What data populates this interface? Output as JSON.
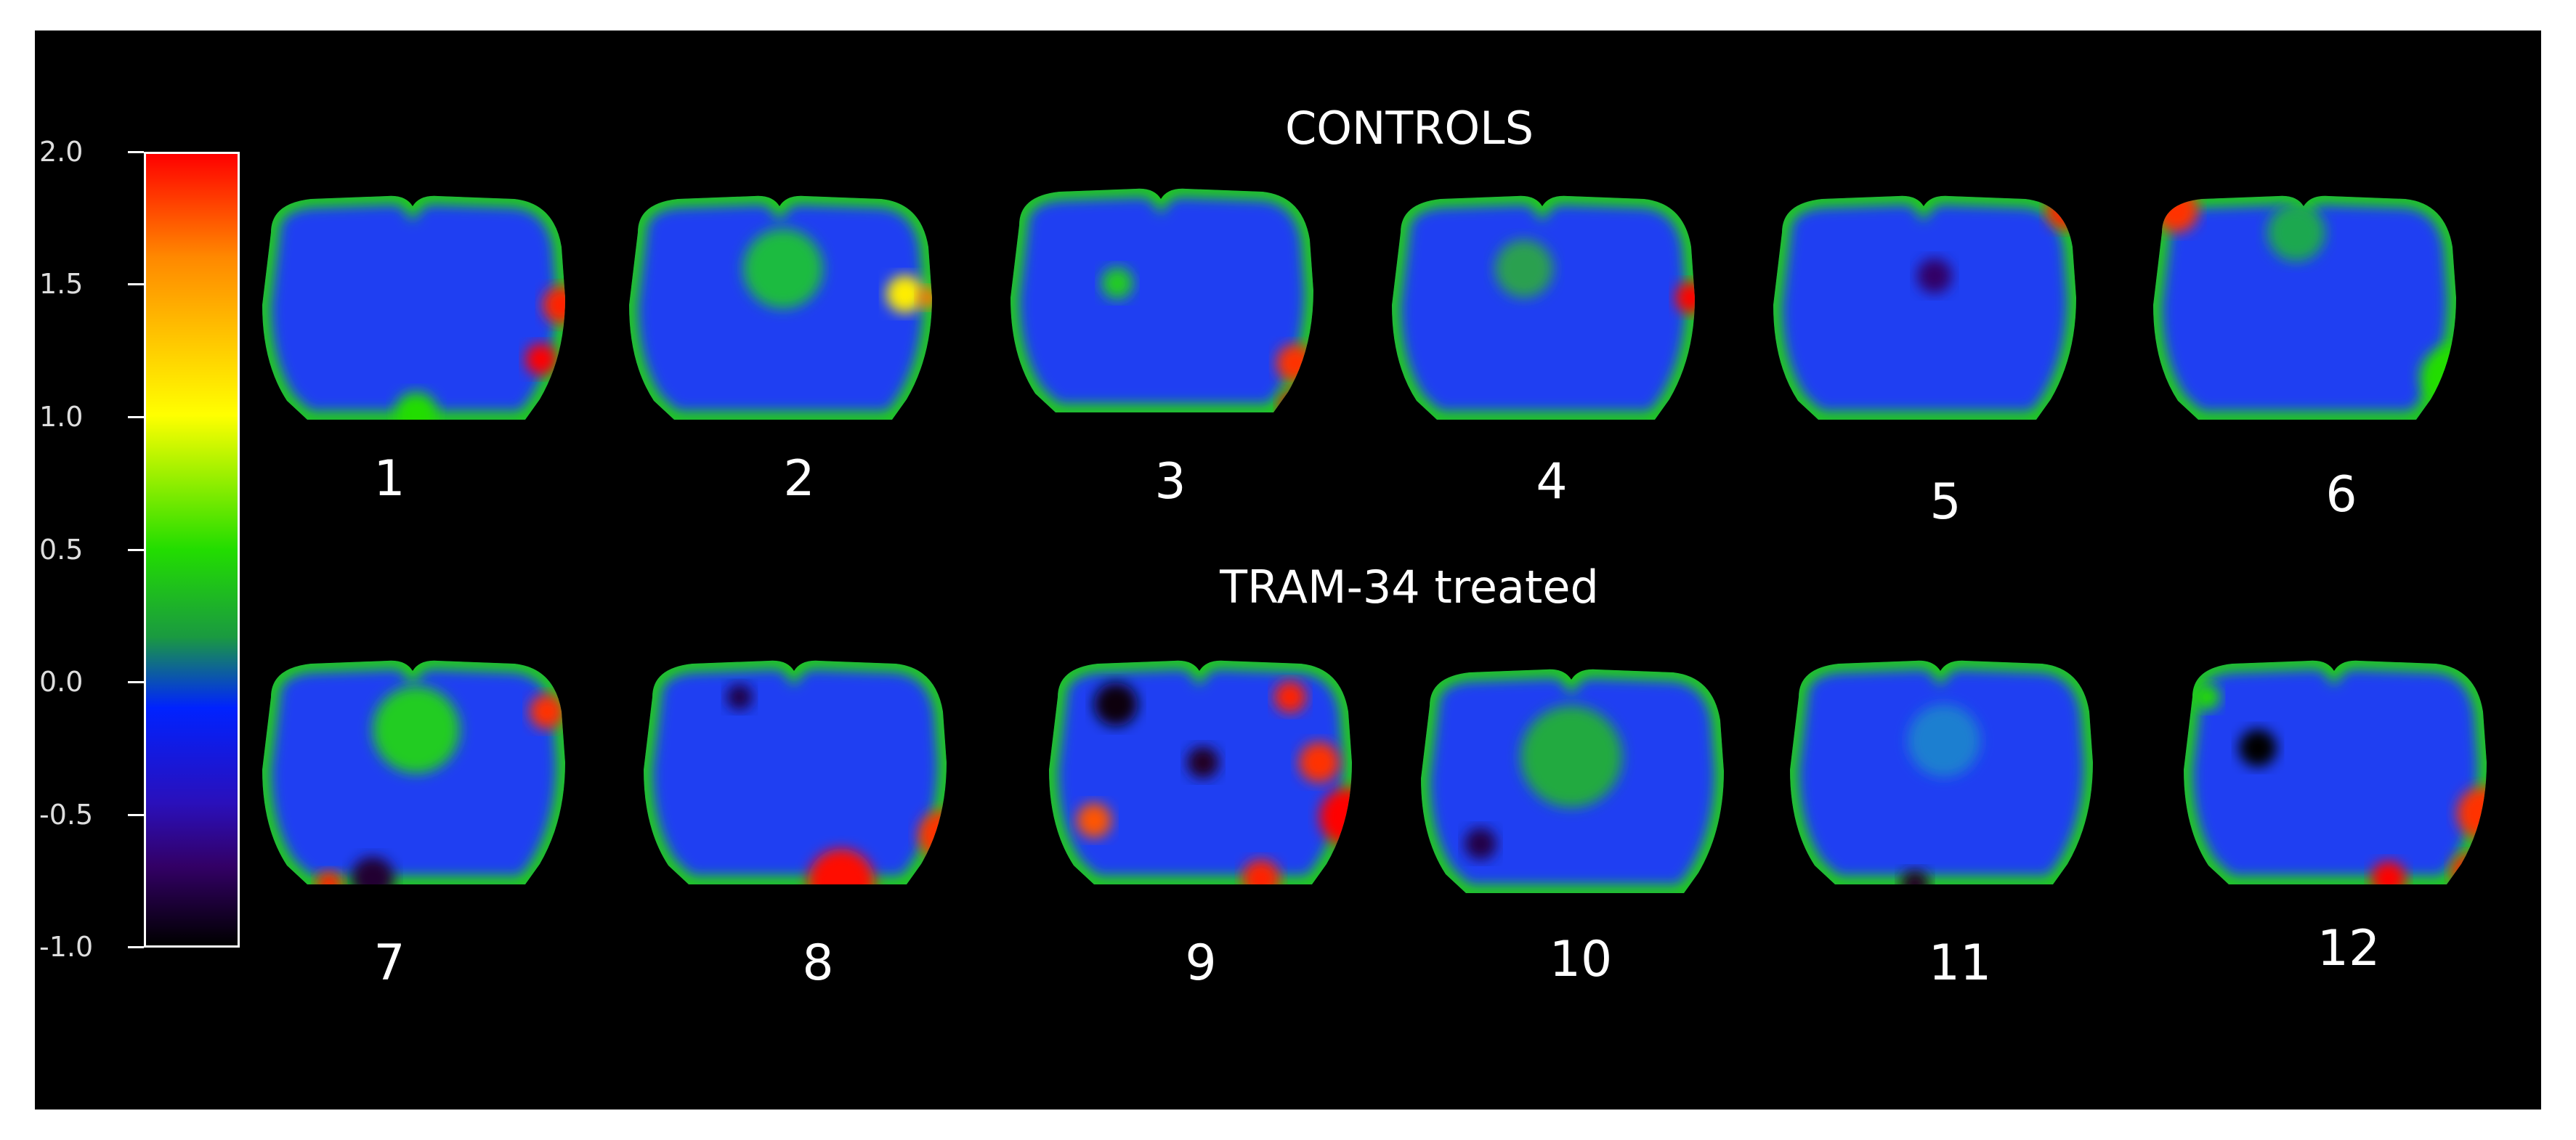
{
  "groups": [
    {
      "title": "CONTROLS",
      "slices": [
        "1",
        "2",
        "3",
        "4",
        "5",
        "6"
      ]
    },
    {
      "title": "TRAM-34 treated",
      "slices": [
        "7",
        "8",
        "9",
        "10",
        "11",
        "12"
      ]
    }
  ],
  "colorbar": {
    "ticks": [
      "2.0",
      "1.5",
      "1.0",
      "0.5",
      "0.0",
      "-0.5",
      "-1.0"
    ],
    "max": 2.0,
    "min": -1.0,
    "colors": [
      "#ff0000",
      "#ff9900",
      "#ffff00",
      "#22dd00",
      "#0022ff",
      "#330066",
      "#000000"
    ]
  },
  "colors": {
    "background": "#000000",
    "text": "#ffffff",
    "base_map": "#1f3ff2"
  }
}
